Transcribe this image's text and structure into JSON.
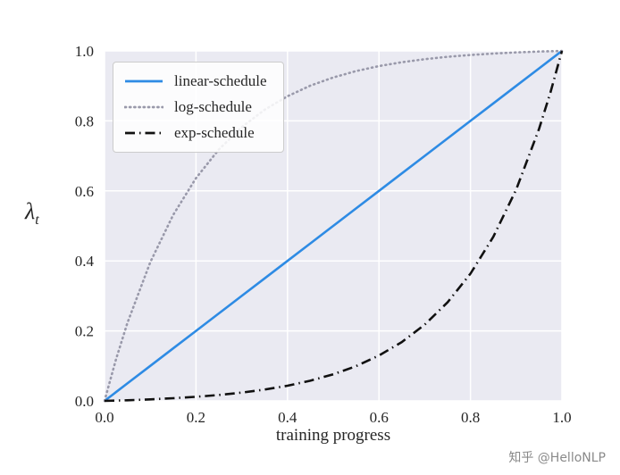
{
  "watermark": {
    "text": "知乎 @HelloNLP"
  },
  "chart_data": {
    "type": "line",
    "title": "",
    "xlabel": "training progress",
    "ylabel": "λt",
    "ylabel_base": "λ",
    "ylabel_sub": "t",
    "xlim": [
      0,
      1
    ],
    "ylim": [
      0,
      1
    ],
    "xticks": [
      0.0,
      0.2,
      0.4,
      0.6,
      0.8,
      1.0
    ],
    "yticks": [
      0.0,
      0.2,
      0.4,
      0.6,
      0.8,
      1.0
    ],
    "grid": true,
    "plot_bg": "#eaeaf2",
    "grid_color": "#ffffff",
    "legend_position": "upper-left",
    "x": [
      0,
      0.025,
      0.05,
      0.1,
      0.15,
      0.2,
      0.25,
      0.3,
      0.35,
      0.4,
      0.45,
      0.5,
      0.55,
      0.6,
      0.65,
      0.7,
      0.75,
      0.8,
      0.85,
      0.9,
      0.95,
      0.975,
      1.0
    ],
    "series": [
      {
        "name": "linear-schedule",
        "color": "#2e8be4",
        "style": "solid",
        "values": [
          0,
          0.025,
          0.05,
          0.1,
          0.15,
          0.2,
          0.25,
          0.3,
          0.35,
          0.4,
          0.45,
          0.5,
          0.55,
          0.6,
          0.65,
          0.7,
          0.75,
          0.8,
          0.85,
          0.9,
          0.95,
          0.975,
          1.0
        ]
      },
      {
        "name": "log-schedule",
        "color": "#9999aa",
        "style": "dotted",
        "values": [
          0,
          0.1183,
          0.2227,
          0.3961,
          0.5312,
          0.6364,
          0.7183,
          0.7821,
          0.8318,
          0.8705,
          0.9007,
          0.9241,
          0.9424,
          0.9567,
          0.9677,
          0.9764,
          0.9831,
          0.9883,
          0.9924,
          0.9956,
          0.9981,
          0.9991,
          1.0
        ]
      },
      {
        "name": "exp-schedule",
        "color": "#111111",
        "style": "dashdot",
        "values": [
          0,
          0.0009,
          0.0019,
          0.0044,
          0.0076,
          0.0117,
          0.0169,
          0.0236,
          0.0323,
          0.0433,
          0.0576,
          0.0759,
          0.0993,
          0.1295,
          0.1682,
          0.2179,
          0.2817,
          0.3636,
          0.4688,
          0.6039,
          0.7773,
          0.8817,
          1.0
        ]
      }
    ]
  }
}
